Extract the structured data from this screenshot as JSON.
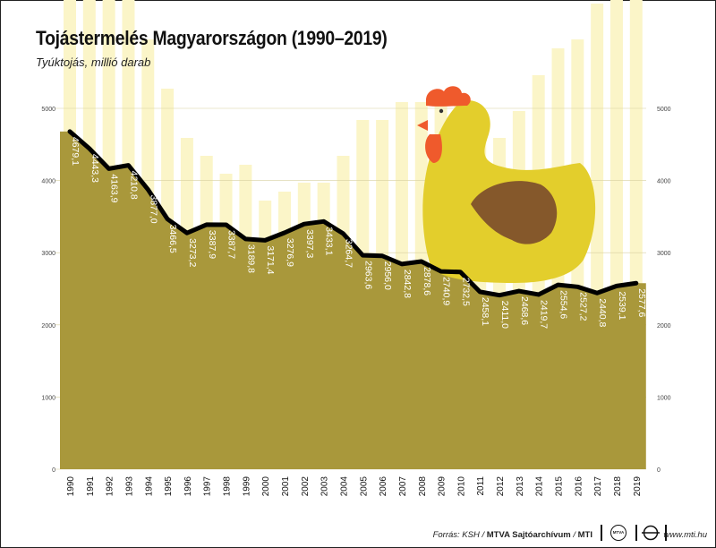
{
  "title": "Tojástermelés Magyarországon (1990–2019)",
  "subtitle": "Tyúktojás, millió darab",
  "colors": {
    "area": "#a9983b",
    "line": "#000000",
    "bg_bars": "#fbf5c8",
    "grid": "#d8d0a0",
    "value_label": "#ffffff",
    "hen_body": "#e3ce2c",
    "hen_wing": "#85582b",
    "hen_comb": "#ef5a2c"
  },
  "footer": {
    "source_prefix": "Forrás: KSH / ",
    "source_bold": "MTVA Sajtóarchívum",
    "source_sep": " / ",
    "source_bold2": "MTI",
    "logo_text": "MTVA",
    "website": "www.mti.hu"
  },
  "chart_data": {
    "type": "area",
    "x": [
      "1990",
      "1991",
      "1992",
      "1993",
      "1994",
      "1995",
      "1996",
      "1997",
      "1998",
      "1999",
      "2000",
      "2001",
      "2002",
      "2003",
      "2004",
      "2005",
      "2006",
      "2007",
      "2008",
      "2009",
      "2010",
      "2011",
      "2012",
      "2013",
      "2014",
      "2015",
      "2016",
      "2017",
      "2018",
      "2019"
    ],
    "values": [
      4679.1,
      4443.3,
      4163.9,
      4210.8,
      3877.0,
      3466.5,
      3273.2,
      3387.9,
      3387.7,
      3189.8,
      3171.4,
      3276.9,
      3397.3,
      3433.1,
      3264.7,
      2963.6,
      2956.0,
      2842.8,
      2878.6,
      2740.9,
      2732.5,
      2458.1,
      2411.0,
      2468.6,
      2419.7,
      2554.6,
      2527.2,
      2440.8,
      2539.1,
      2577.6
    ],
    "value_labels": [
      "4679,1",
      "4443,3",
      "4163,9",
      "4210,8",
      "3877,0",
      "3466,5",
      "3273,2",
      "3387,9",
      "3387,7",
      "3189,8",
      "3171,4",
      "3276,9",
      "3397,3",
      "3433,1",
      "3264,7",
      "2963,6",
      "2956,0",
      "2842,8",
      "2878,6",
      "2740,9",
      "2732,5",
      "2458,1",
      "2411,0",
      "2468,6",
      "2419,7",
      "2554,6",
      "2527,2",
      "2440,8",
      "2539,1",
      "2577,6"
    ],
    "ylim": [
      0,
      5000
    ],
    "yticks": [
      0,
      1000,
      2000,
      3000,
      4000,
      5000
    ],
    "grid": true
  }
}
